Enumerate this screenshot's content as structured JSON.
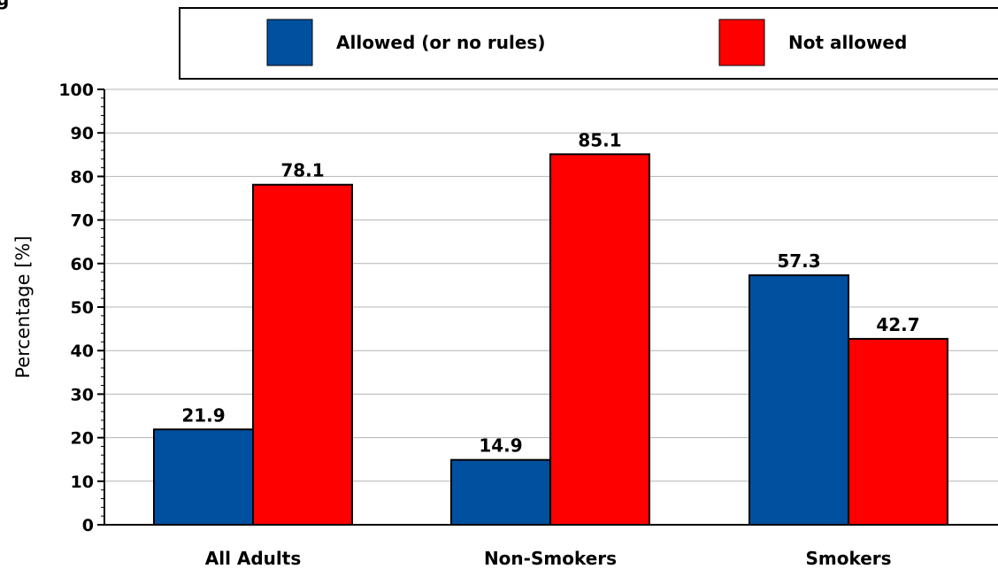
{
  "chart_data": {
    "type": "bar",
    "title": "",
    "xlabel": "",
    "ylabel": "Percentage [%]",
    "categories": [
      "All Adults",
      "Non-Smokers",
      "Smokers"
    ],
    "series": [
      {
        "name": "Allowed (or no rules)",
        "color": "#0050a0",
        "values": [
          21.9,
          14.9,
          57.3
        ]
      },
      {
        "name": "Not allowed",
        "color": "#ff0000",
        "values": [
          78.1,
          85.1,
          42.7
        ]
      }
    ],
    "value_labels": [
      [
        "21.9",
        "14.9",
        "57.3"
      ],
      [
        "78.1",
        "85.1",
        "42.7"
      ]
    ],
    "ylim": [
      0,
      100
    ],
    "yticks": [
      0,
      10,
      20,
      30,
      40,
      50,
      60,
      70,
      80,
      90,
      100
    ],
    "ytick_labels": [
      "0",
      "10",
      "20",
      "30",
      "40",
      "50",
      "60",
      "70",
      "80",
      "90",
      "100"
    ],
    "grid": true,
    "legend_position": "top"
  }
}
